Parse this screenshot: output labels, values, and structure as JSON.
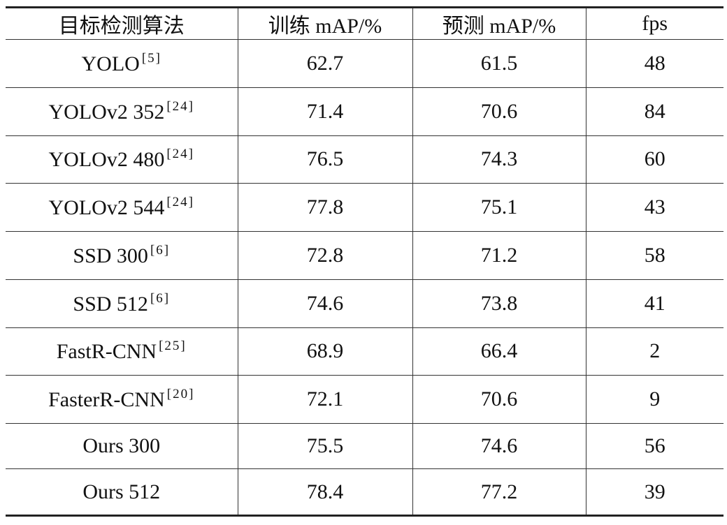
{
  "table": {
    "header": [
      "目标检测算法",
      "训练 mAP/%",
      "预测 mAP/%",
      "fps"
    ],
    "rows": [
      {
        "method": "YOLO",
        "ref": "[5]",
        "train": 62.7,
        "test": 61.5,
        "fps": 48
      },
      {
        "method": "YOLOv2 352",
        "ref": "[24]",
        "train": 71.4,
        "test": 70.6,
        "fps": 84
      },
      {
        "method": "YOLOv2 480",
        "ref": "[24]",
        "train": 76.5,
        "test": 74.3,
        "fps": 60
      },
      {
        "method": "YOLOv2 544",
        "ref": "[24]",
        "train": 77.8,
        "test": 75.1,
        "fps": 43
      },
      {
        "method": "SSD 300",
        "ref": "[6]",
        "train": 72.8,
        "test": 71.2,
        "fps": 58
      },
      {
        "method": "SSD 512",
        "ref": "[6]",
        "train": 74.6,
        "test": 73.8,
        "fps": 41
      },
      {
        "method": "FastR-CNN",
        "ref": "[25]",
        "train": 68.9,
        "test": 66.4,
        "fps": 2
      },
      {
        "method": "FasterR-CNN",
        "ref": "[20]",
        "train": 72.1,
        "test": 70.6,
        "fps": 9
      },
      {
        "method": "Ours 300",
        "train": 75.5,
        "test": 74.6,
        "fps": 56
      },
      {
        "method": "Ours 512",
        "train": 78.4,
        "test": 77.2,
        "fps": 39
      }
    ]
  }
}
